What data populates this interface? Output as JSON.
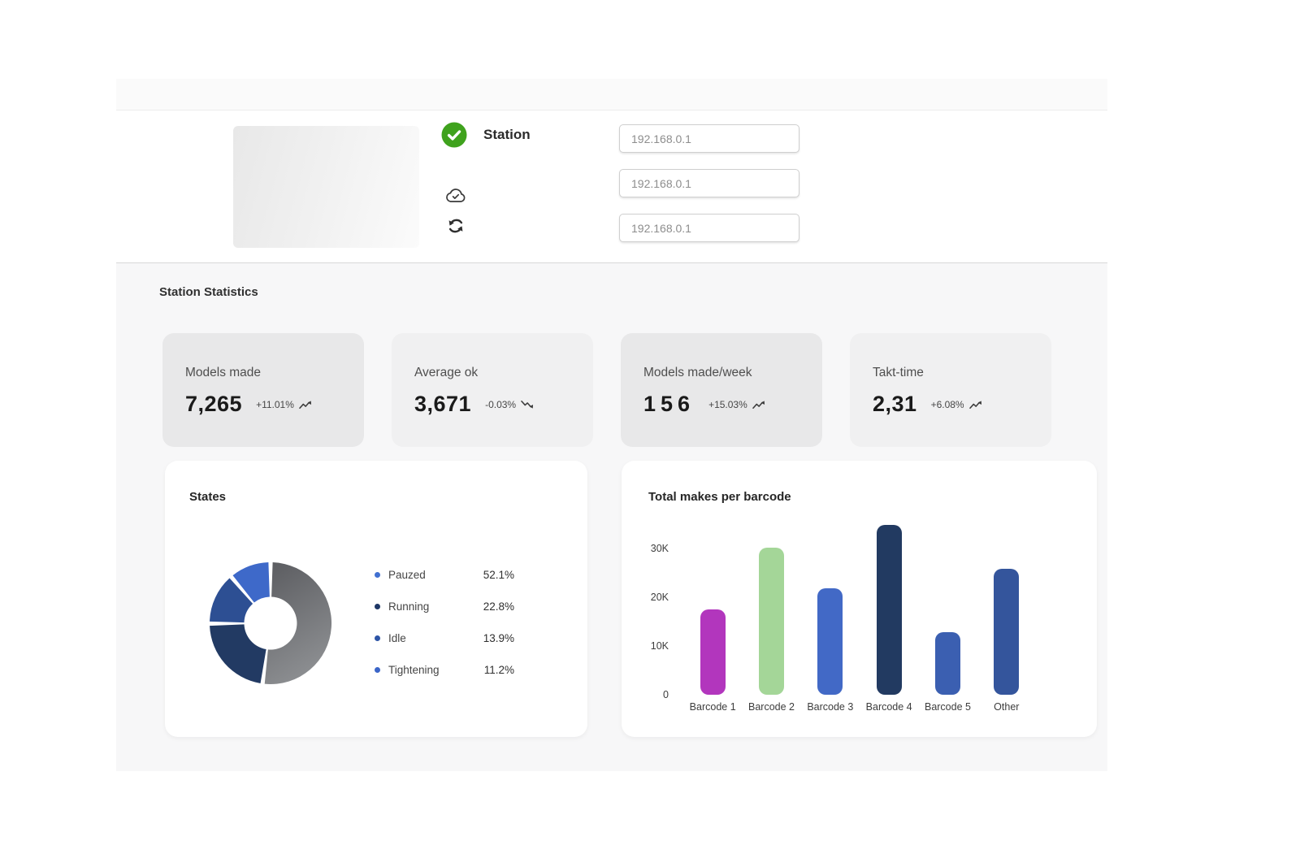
{
  "station": {
    "label": "Station",
    "status_icon": "check-circle-icon",
    "action_icons": [
      "cloud-check-icon",
      "sync-icon"
    ],
    "inputs": [
      {
        "value": "192.168.0.1"
      },
      {
        "value": "192.168.0.1"
      },
      {
        "value": "192.168.0.1"
      }
    ]
  },
  "statistics": {
    "title": "Station Statistics",
    "cards": [
      {
        "label": "Models made",
        "value": "7,265",
        "delta": "+11.01%",
        "trend": "up",
        "emphasized": true
      },
      {
        "label": "Average ok",
        "value": "3,671",
        "delta": "-0.03%",
        "trend": "down",
        "emphasized": false
      },
      {
        "label": "Models made/week",
        "value": "156",
        "delta": "+15.03%",
        "trend": "up",
        "emphasized": true
      },
      {
        "label": "Takt-time",
        "value": "2,31",
        "delta": "+6.08%",
        "trend": "up",
        "emphasized": false
      }
    ]
  },
  "chart_data": [
    {
      "type": "pie",
      "title": "States",
      "donut": true,
      "start_angle_deg": 0,
      "clockwise": true,
      "gap_deg": 4,
      "legend_position": "right",
      "slices": [
        {
          "label": "Pauzed",
          "value": 52.1,
          "display": "52.1%",
          "slice_color": [
            "#5a5b5f",
            "#8b8d90"
          ],
          "dot_color": "#4170d1"
        },
        {
          "label": "Running",
          "value": 22.8,
          "display": "22.8%",
          "slice_color": [
            "#223a63",
            "#223a63"
          ],
          "dot_color": "#1e3766"
        },
        {
          "label": "Idle",
          "value": 13.9,
          "display": "13.9%",
          "slice_color": [
            "#2d4f93",
            "#2d4f93"
          ],
          "dot_color": "#2d54a6"
        },
        {
          "label": "Tightening",
          "value": 11.2,
          "display": "11.2%",
          "slice_color": [
            "#3e69c9",
            "#3e69c9"
          ],
          "dot_color": "#3b65c8"
        }
      ]
    },
    {
      "type": "bar",
      "title": "Total makes per barcode",
      "categories": [
        "Barcode 1",
        "Barcode 2",
        "Barcode 3",
        "Barcode 4",
        "Barcode 5",
        "Other"
      ],
      "values": [
        17500,
        30200,
        21800,
        34800,
        12800,
        25800
      ],
      "colors": [
        "#b236bd",
        "#a4d698",
        "#4269c6",
        "#223a61",
        "#3b5fb1",
        "#34559c"
      ],
      "ylim": [
        0,
        36000
      ],
      "yticks": [
        {
          "value": 0,
          "label": "0"
        },
        {
          "value": 10000,
          "label": "10K"
        },
        {
          "value": 20000,
          "label": "20K"
        },
        {
          "value": 30000,
          "label": "30K"
        }
      ],
      "grid": false,
      "xlabel": "",
      "ylabel": ""
    }
  ]
}
